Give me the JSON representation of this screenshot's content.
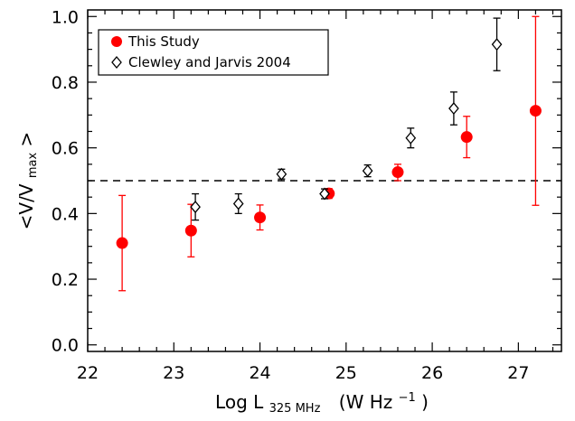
{
  "chart_data": {
    "type": "scatter",
    "xlabel_parts": {
      "main": "Log L",
      "sub": "325 MHz",
      "unit_start": "(W Hz",
      "unit_exp": "−1",
      "unit_end": ")"
    },
    "ylabel_parts": {
      "open": "<V/V",
      "sub": "max",
      "close": ">"
    },
    "xlim": [
      22,
      27.5
    ],
    "ylim": [
      -0.02,
      1.02
    ],
    "x_ticks": [
      "22",
      "23",
      "24",
      "25",
      "26",
      "27"
    ],
    "y_ticks": [
      "0.0",
      "0.2",
      "0.4",
      "0.6",
      "0.8",
      "1.0"
    ],
    "reference_line": {
      "y": 0.5,
      "style": "dashed"
    },
    "legend_position": "top-left",
    "series": [
      {
        "name": "This Study",
        "marker": "filled-circle",
        "color": "#ff0000",
        "points": [
          {
            "x": 22.4,
            "y": 0.31,
            "lo": 0.165,
            "hi": 0.455
          },
          {
            "x": 23.2,
            "y": 0.348,
            "lo": 0.268,
            "hi": 0.428
          },
          {
            "x": 24.0,
            "y": 0.388,
            "lo": 0.35,
            "hi": 0.426
          },
          {
            "x": 24.8,
            "y": 0.461,
            "lo": 0.446,
            "hi": 0.476
          },
          {
            "x": 25.6,
            "y": 0.526,
            "lo": 0.5,
            "hi": 0.55
          },
          {
            "x": 26.4,
            "y": 0.633,
            "lo": 0.57,
            "hi": 0.696
          },
          {
            "x": 27.2,
            "y": 0.713,
            "lo": 0.425,
            "hi": 1.0
          }
        ]
      },
      {
        "name": "Clewley and Jarvis 2004",
        "marker": "open-diamond",
        "color": "#000000",
        "points": [
          {
            "x": 23.25,
            "y": 0.42,
            "lo": 0.38,
            "hi": 0.46
          },
          {
            "x": 23.75,
            "y": 0.43,
            "lo": 0.4,
            "hi": 0.46
          },
          {
            "x": 24.25,
            "y": 0.52,
            "lo": 0.505,
            "hi": 0.535
          },
          {
            "x": 24.75,
            "y": 0.46,
            "lo": 0.445,
            "hi": 0.475
          },
          {
            "x": 25.25,
            "y": 0.53,
            "lo": 0.512,
            "hi": 0.548
          },
          {
            "x": 25.75,
            "y": 0.63,
            "lo": 0.6,
            "hi": 0.66
          },
          {
            "x": 26.25,
            "y": 0.72,
            "lo": 0.67,
            "hi": 0.77
          },
          {
            "x": 26.75,
            "y": 0.915,
            "lo": 0.835,
            "hi": 0.995
          }
        ]
      }
    ]
  }
}
